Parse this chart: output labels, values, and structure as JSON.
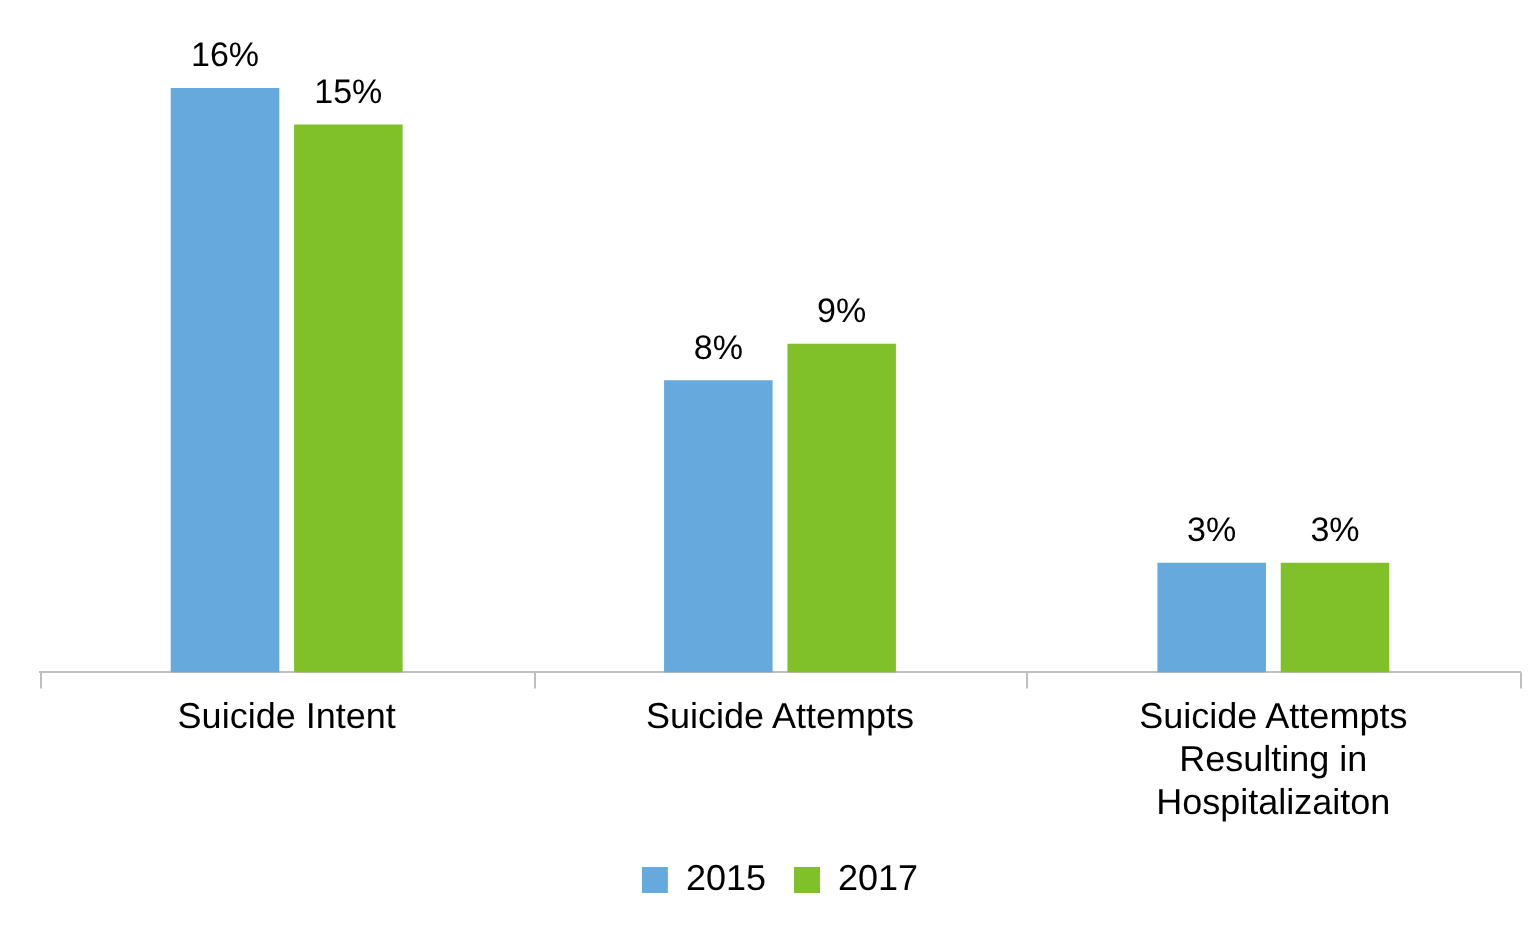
{
  "chart_data": {
    "type": "bar",
    "categories": [
      "Suicide Intent",
      "Suicide Attempts",
      "Suicide Attempts Resulting in Hospitalizaiton"
    ],
    "series": [
      {
        "name": "2015",
        "color": "#66a9dc",
        "values": [
          16,
          8,
          3
        ],
        "value_labels": [
          "16%",
          "8%",
          "3%"
        ]
      },
      {
        "name": "2017",
        "color": "#80c12a",
        "values": [
          15,
          9,
          3
        ],
        "value_labels": [
          "15%",
          "9%",
          "3%"
        ]
      }
    ],
    "legend": "bottom",
    "grid": false
  }
}
